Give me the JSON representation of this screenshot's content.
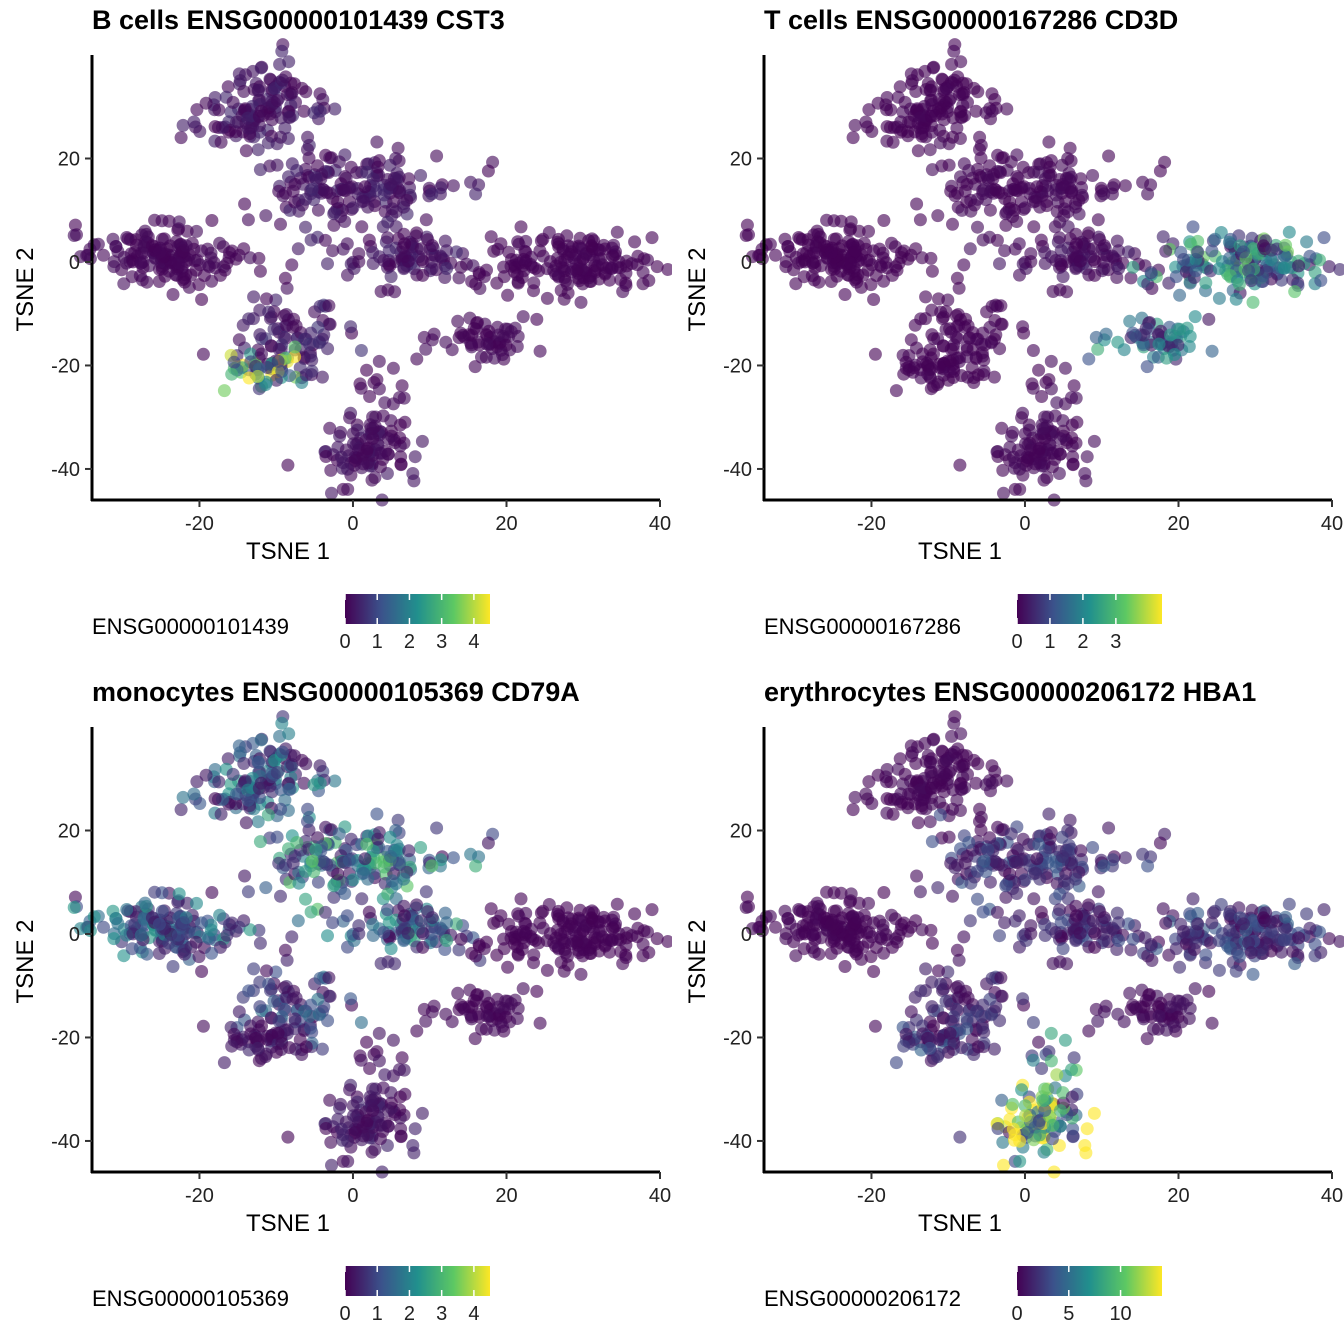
{
  "panels": [
    {
      "title": "B cells ENSG00000101439 CST3",
      "legend_title": "ENSG00000101439",
      "legend_breaks": [
        "0",
        "1",
        "2",
        "3",
        "4"
      ],
      "legend_max": 4.5,
      "xlabel": "TSNE 1",
      "ylabel": "TSNE 2"
    },
    {
      "title": "T cells ENSG00000167286 CD3D",
      "legend_title": "ENSG00000167286",
      "legend_breaks": [
        "0",
        "1",
        "2",
        "3"
      ],
      "legend_max": 4.4,
      "xlabel": "TSNE 1",
      "ylabel": "TSNE 2"
    },
    {
      "title": "monocytes ENSG00000105369 CD79A",
      "legend_title": "ENSG00000105369",
      "legend_breaks": [
        "0",
        "1",
        "2",
        "3",
        "4"
      ],
      "legend_max": 4.5,
      "xlabel": "TSNE 1",
      "ylabel": "TSNE 2"
    },
    {
      "title": "erythrocytes ENSG00000206172 HBA1",
      "legend_title": "ENSG00000206172",
      "legend_breaks": [
        "0",
        "5",
        "10"
      ],
      "legend_max": 14,
      "xlabel": "TSNE 1",
      "ylabel": "TSNE 2"
    }
  ],
  "chart_data": {
    "type": "scatter",
    "xlabel": "TSNE 1",
    "ylabel": "TSNE 2",
    "xlim": [
      -34,
      40
    ],
    "ylim": [
      -46,
      40
    ],
    "xticks": [
      -20,
      0,
      20,
      40
    ],
    "yticks": [
      -40,
      -20,
      0,
      20
    ],
    "grid": false,
    "legend_placement": "bottom",
    "colormap": [
      "#440154",
      "#3b528b",
      "#21908d",
      "#5dc863",
      "#fde725"
    ],
    "clusters": [
      {
        "id": "A",
        "center": [
          -12,
          29
        ],
        "spread": [
          4,
          4.5
        ],
        "count": 140
      },
      {
        "id": "B",
        "center": [
          0,
          14
        ],
        "spread": [
          6,
          4
        ],
        "count": 170
      },
      {
        "id": "C",
        "center": [
          -25,
          1
        ],
        "spread": [
          5,
          3
        ],
        "count": 160
      },
      {
        "id": "D",
        "center": [
          8,
          1
        ],
        "spread": [
          5,
          3
        ],
        "count": 90
      },
      {
        "id": "E",
        "center": [
          -8,
          -14
        ],
        "spread": [
          4,
          4
        ],
        "count": 80
      },
      {
        "id": "F",
        "center": [
          -12,
          -21
        ],
        "spread": [
          3,
          2
        ],
        "count": 50
      },
      {
        "id": "G",
        "center": [
          28,
          0
        ],
        "spread": [
          6,
          3
        ],
        "count": 170
      },
      {
        "id": "H",
        "center": [
          18,
          -15
        ],
        "spread": [
          3,
          2
        ],
        "count": 60
      },
      {
        "id": "I",
        "center": [
          2,
          -37
        ],
        "spread": [
          3,
          3.5
        ],
        "count": 90
      },
      {
        "id": "J",
        "center": [
          4,
          -27
        ],
        "spread": [
          1.5,
          4
        ],
        "count": 25
      }
    ],
    "expression": [
      {
        "A": 0.3,
        "B": 0.3,
        "C": 0.1,
        "D": 0.3,
        "E": 0.4,
        "F": 3.0,
        "G": 0.05,
        "H": 0.1,
        "I": 0.2,
        "J": 0.1
      },
      {
        "A": 0.05,
        "B": 0.1,
        "C": 0.02,
        "D": 0.2,
        "E": 0.05,
        "F": 0.05,
        "G": 2.0,
        "H": 1.6,
        "I": 0.1,
        "J": 0.1
      },
      {
        "A": 1.4,
        "B": 2.0,
        "C": 1.4,
        "D": 1.6,
        "E": 1.0,
        "F": 0.3,
        "G": 0.05,
        "H": 0.1,
        "I": 0.3,
        "J": 0.2
      },
      {
        "A": 0.3,
        "B": 2.4,
        "C": 0.2,
        "D": 2.0,
        "E": 1.6,
        "F": 2.6,
        "G": 2.6,
        "H": 0.5,
        "I": 11.5,
        "J": 7.0
      }
    ]
  }
}
